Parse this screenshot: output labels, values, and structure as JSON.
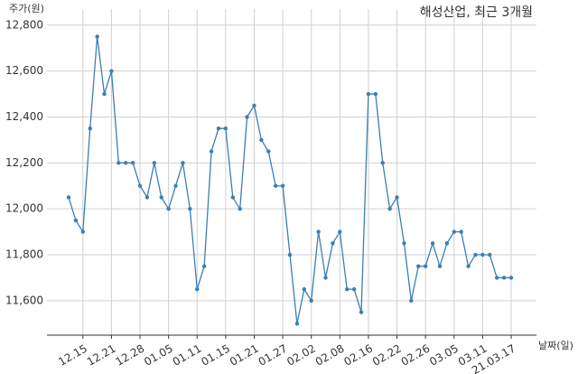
{
  "chart_data": {
    "type": "line",
    "title": "해성산업, 최근 3개월",
    "y_label": "주가(원)",
    "x_label": "날짜(일)",
    "categories": [
      null,
      null,
      "12.15",
      null,
      null,
      null,
      "12.21",
      null,
      null,
      null,
      "12.28",
      null,
      null,
      null,
      "01.05",
      null,
      null,
      null,
      "01.11",
      null,
      null,
      null,
      "01.15",
      null,
      null,
      null,
      "01.21",
      null,
      null,
      null,
      "01.27",
      null,
      null,
      null,
      "02.02",
      null,
      null,
      null,
      "02.08",
      null,
      null,
      null,
      "02.16",
      null,
      null,
      null,
      "02.22",
      null,
      null,
      null,
      "02.26",
      null,
      null,
      null,
      "03.05",
      null,
      null,
      null,
      "03.11",
      null,
      null,
      null,
      "21.03.17"
    ],
    "series": [
      {
        "name": "주가",
        "color": "#3a7fb5",
        "values": [
          12050,
          11950,
          11900,
          12350,
          12750,
          12500,
          12600,
          12200,
          12200,
          12200,
          12100,
          12050,
          12200,
          12050,
          12000,
          12100,
          12200,
          12000,
          11650,
          11750,
          12250,
          12350,
          12350,
          12050,
          12000,
          12400,
          12450,
          12300,
          12250,
          12100,
          12100,
          11800,
          11500,
          11650,
          11600,
          11900,
          11700,
          11850,
          11900,
          11650,
          11650,
          11550,
          12500,
          12500,
          12200,
          12000,
          12050,
          11850,
          11600,
          11750,
          11750,
          11850,
          11750,
          11850,
          11900,
          11900,
          11750,
          11800,
          11800,
          11800,
          11700,
          11700,
          11700
        ]
      }
    ],
    "ylim": [
      11450,
      12870
    ],
    "yticks": [
      {
        "value": 11600,
        "label": "11,600"
      },
      {
        "value": 11800,
        "label": "11,800"
      },
      {
        "value": 12000,
        "label": "12,000"
      },
      {
        "value": 12200,
        "label": "12,200"
      },
      {
        "value": 12400,
        "label": "12,400"
      },
      {
        "value": 12600,
        "label": "12,600"
      },
      {
        "value": 12800,
        "label": "12,800"
      }
    ],
    "grid": true
  }
}
